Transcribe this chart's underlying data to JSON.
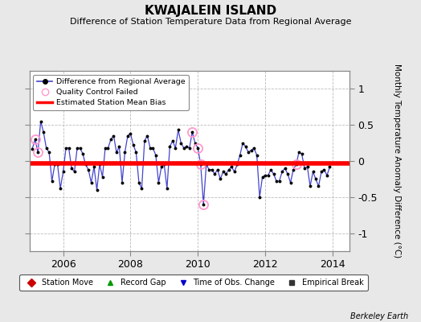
{
  "title": "KWAJALEIN ISLAND",
  "subtitle": "Difference of Station Temperature Data from Regional Average",
  "ylabel": "Monthly Temperature Anomaly Difference (°C)",
  "credit": "Berkeley Earth",
  "xlim": [
    2005.0,
    2014.5
  ],
  "ylim": [
    -1.25,
    1.25
  ],
  "yticks": [
    -1,
    -0.5,
    0,
    0.5,
    1
  ],
  "xticks": [
    2006,
    2008,
    2010,
    2012,
    2014
  ],
  "bias_value": -0.03,
  "bg_color": "#e8e8e8",
  "plot_bg_color": "#ffffff",
  "line_color": "#4444cc",
  "marker_color": "#000000",
  "bias_color": "#ff0000",
  "qc_color": "#ff99cc",
  "data": [
    [
      2005.0833,
      0.17
    ],
    [
      2005.1667,
      0.3
    ],
    [
      2005.25,
      0.12
    ],
    [
      2005.3333,
      0.55
    ],
    [
      2005.4167,
      0.4
    ],
    [
      2005.5,
      0.18
    ],
    [
      2005.5833,
      0.12
    ],
    [
      2005.6667,
      -0.28
    ],
    [
      2005.75,
      -0.05
    ],
    [
      2005.8333,
      -0.05
    ],
    [
      2005.9167,
      -0.38
    ],
    [
      2006.0,
      -0.15
    ],
    [
      2006.0833,
      0.18
    ],
    [
      2006.1667,
      0.18
    ],
    [
      2006.25,
      -0.1
    ],
    [
      2006.3333,
      -0.15
    ],
    [
      2006.4167,
      0.18
    ],
    [
      2006.5,
      0.18
    ],
    [
      2006.5833,
      0.1
    ],
    [
      2006.6667,
      -0.05
    ],
    [
      2006.75,
      -0.12
    ],
    [
      2006.8333,
      -0.3
    ],
    [
      2006.9167,
      -0.08
    ],
    [
      2007.0,
      -0.4
    ],
    [
      2007.0833,
      -0.05
    ],
    [
      2007.1667,
      -0.22
    ],
    [
      2007.25,
      0.18
    ],
    [
      2007.3333,
      0.18
    ],
    [
      2007.4167,
      0.3
    ],
    [
      2007.5,
      0.35
    ],
    [
      2007.5833,
      0.12
    ],
    [
      2007.6667,
      0.2
    ],
    [
      2007.75,
      -0.3
    ],
    [
      2007.8333,
      0.12
    ],
    [
      2007.9167,
      0.35
    ],
    [
      2008.0,
      0.38
    ],
    [
      2008.0833,
      0.22
    ],
    [
      2008.1667,
      0.12
    ],
    [
      2008.25,
      -0.3
    ],
    [
      2008.3333,
      -0.38
    ],
    [
      2008.4167,
      0.28
    ],
    [
      2008.5,
      0.35
    ],
    [
      2008.5833,
      0.18
    ],
    [
      2008.6667,
      0.18
    ],
    [
      2008.75,
      0.08
    ],
    [
      2008.8333,
      -0.3
    ],
    [
      2008.9167,
      -0.08
    ],
    [
      2009.0,
      -0.05
    ],
    [
      2009.0833,
      -0.38
    ],
    [
      2009.1667,
      0.2
    ],
    [
      2009.25,
      0.28
    ],
    [
      2009.3333,
      0.18
    ],
    [
      2009.4167,
      0.43
    ],
    [
      2009.5,
      0.25
    ],
    [
      2009.5833,
      0.18
    ],
    [
      2009.6667,
      0.2
    ],
    [
      2009.75,
      0.18
    ],
    [
      2009.8333,
      0.4
    ],
    [
      2009.9167,
      0.25
    ],
    [
      2010.0,
      0.18
    ],
    [
      2010.0833,
      -0.05
    ],
    [
      2010.1667,
      -0.6
    ],
    [
      2010.25,
      -0.05
    ],
    [
      2010.3333,
      -0.12
    ],
    [
      2010.4167,
      -0.12
    ],
    [
      2010.5,
      -0.18
    ],
    [
      2010.5833,
      -0.12
    ],
    [
      2010.6667,
      -0.25
    ],
    [
      2010.75,
      -0.15
    ],
    [
      2010.8333,
      -0.18
    ],
    [
      2010.9167,
      -0.12
    ],
    [
      2011.0,
      -0.08
    ],
    [
      2011.0833,
      -0.15
    ],
    [
      2011.1667,
      -0.05
    ],
    [
      2011.25,
      0.08
    ],
    [
      2011.3333,
      0.25
    ],
    [
      2011.4167,
      0.2
    ],
    [
      2011.5,
      0.12
    ],
    [
      2011.5833,
      0.15
    ],
    [
      2011.6667,
      0.18
    ],
    [
      2011.75,
      0.08
    ],
    [
      2011.8333,
      -0.5
    ],
    [
      2011.9167,
      -0.22
    ],
    [
      2012.0,
      -0.2
    ],
    [
      2012.0833,
      -0.2
    ],
    [
      2012.1667,
      -0.12
    ],
    [
      2012.25,
      -0.18
    ],
    [
      2012.3333,
      -0.28
    ],
    [
      2012.4167,
      -0.28
    ],
    [
      2012.5,
      -0.15
    ],
    [
      2012.5833,
      -0.1
    ],
    [
      2012.6667,
      -0.18
    ],
    [
      2012.75,
      -0.3
    ],
    [
      2012.8333,
      -0.12
    ],
    [
      2012.9167,
      -0.05
    ],
    [
      2013.0,
      0.12
    ],
    [
      2013.0833,
      0.1
    ],
    [
      2013.1667,
      -0.1
    ],
    [
      2013.25,
      -0.08
    ],
    [
      2013.3333,
      -0.35
    ],
    [
      2013.4167,
      -0.15
    ],
    [
      2013.5,
      -0.25
    ],
    [
      2013.5833,
      -0.35
    ],
    [
      2013.6667,
      -0.15
    ],
    [
      2013.75,
      -0.12
    ],
    [
      2013.8333,
      -0.2
    ],
    [
      2013.9167,
      -0.08
    ]
  ],
  "qc_failed": [
    [
      2005.1667,
      0.3
    ],
    [
      2005.25,
      0.12
    ],
    [
      2009.8333,
      0.4
    ],
    [
      2010.0,
      0.18
    ],
    [
      2010.0833,
      -0.05
    ],
    [
      2010.1667,
      -0.6
    ],
    [
      2012.9167,
      -0.05
    ]
  ]
}
